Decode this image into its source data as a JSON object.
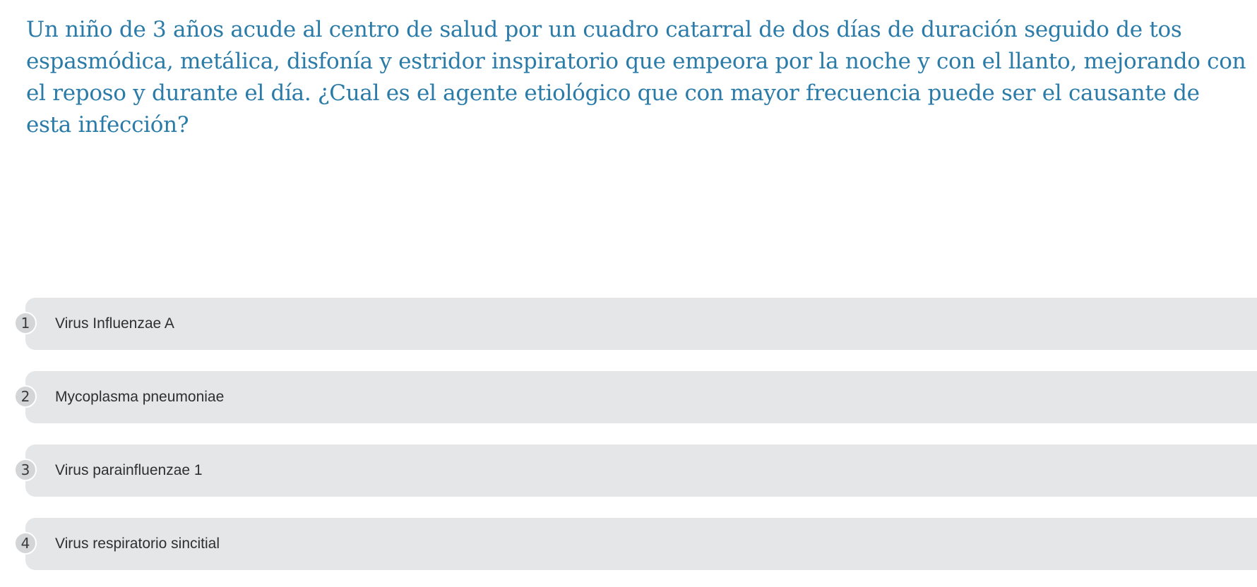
{
  "question": {
    "text": "Un niño de 3 años acude al centro de salud por un cuadro catarral de dos días de duración seguido de tos espasmódica, metálica, disfonía y estridor inspiratorio que empeora por la noche y con el llanto, mejorando con el reposo y durante el día. ¿Cual es el agente etiológico que con mayor frecuencia puede ser el causante de esta infección?"
  },
  "options": [
    {
      "number": "1",
      "label": "Virus Influenzae A"
    },
    {
      "number": "2",
      "label": "Mycoplasma pneumoniae"
    },
    {
      "number": "3",
      "label": "Virus parainfluenzae 1"
    },
    {
      "number": "4",
      "label": "Virus respiratorio sincitial"
    }
  ],
  "colors": {
    "question_text": "#2a7ba8",
    "option_background": "#e5e6e8",
    "number_badge": "#d4d5d7"
  }
}
